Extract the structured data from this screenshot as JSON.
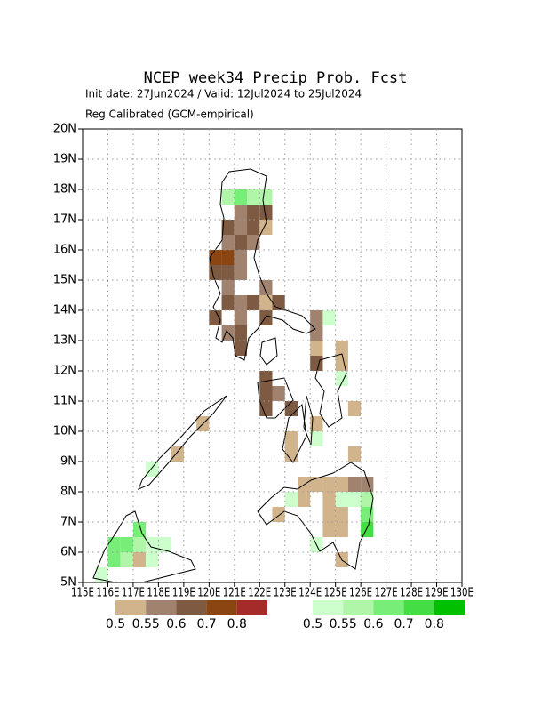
{
  "chart_data": {
    "type": "gridmap",
    "title": "NCEP week34 Precip Prob. Fcst",
    "subtitle": "Init date: 27Jun2024 / Valid: 12Jul2024 to 25Jul2024",
    "note": "Reg Calibrated (GCM-empirical)",
    "xlim": [
      115,
      130
    ],
    "ylim": [
      5,
      20
    ],
    "cell_size": 0.5,
    "grid": true,
    "xticks": [
      {
        "value": 115,
        "label": "115E"
      },
      {
        "value": 116,
        "label": "116E"
      },
      {
        "value": 117,
        "label": "117E"
      },
      {
        "value": 118,
        "label": "118E"
      },
      {
        "value": 119,
        "label": "119E"
      },
      {
        "value": 120,
        "label": "120E"
      },
      {
        "value": 121,
        "label": "121E"
      },
      {
        "value": 122,
        "label": "122E"
      },
      {
        "value": 123,
        "label": "123E"
      },
      {
        "value": 124,
        "label": "124E"
      },
      {
        "value": 125,
        "label": "125E"
      },
      {
        "value": 126,
        "label": "126E"
      },
      {
        "value": 127,
        "label": "127E"
      },
      {
        "value": 128,
        "label": "128E"
      },
      {
        "value": 129,
        "label": "129E"
      },
      {
        "value": 130,
        "label": "130E"
      }
    ],
    "yticks": [
      {
        "value": 5,
        "label": "5N"
      },
      {
        "value": 6,
        "label": "6N"
      },
      {
        "value": 7,
        "label": "7N"
      },
      {
        "value": 8,
        "label": "8N"
      },
      {
        "value": 9,
        "label": "9N"
      },
      {
        "value": 10,
        "label": "10N"
      },
      {
        "value": 11,
        "label": "11N"
      },
      {
        "value": 12,
        "label": "12N"
      },
      {
        "value": 13,
        "label": "13N"
      },
      {
        "value": 14,
        "label": "14N"
      },
      {
        "value": 15,
        "label": "15N"
      },
      {
        "value": 16,
        "label": "16N"
      },
      {
        "value": 17,
        "label": "17N"
      },
      {
        "value": 18,
        "label": "18N"
      },
      {
        "value": 19,
        "label": "19N"
      },
      {
        "value": 20,
        "label": "20N"
      }
    ],
    "below_legend": {
      "levels": [
        0.5,
        0.55,
        0.6,
        0.7,
        0.8
      ],
      "colors": [
        "#d2b48c",
        "#a0826e",
        "#7d5a41",
        "#8b4513",
        "#a52a2a"
      ]
    },
    "above_legend": {
      "levels": [
        0.5,
        0.55,
        0.6,
        0.7,
        0.8
      ],
      "colors": [
        "#ccffcc",
        "#b0f5a8",
        "#77ee77",
        "#44dd44",
        "#00c000"
      ]
    },
    "below_normal": [
      [
        121,
        17,
        0.55
      ],
      [
        121.5,
        17,
        0.6
      ],
      [
        122,
        17,
        0.6
      ],
      [
        120.5,
        16.5,
        0.6
      ],
      [
        121,
        16.5,
        0.55
      ],
      [
        121.5,
        16.5,
        0.6
      ],
      [
        122,
        16.5,
        0.5
      ],
      [
        120.5,
        16,
        0.55
      ],
      [
        121,
        16,
        0.6
      ],
      [
        121.5,
        16,
        0.55
      ],
      [
        120,
        15.5,
        0.7
      ],
      [
        120.5,
        15.5,
        0.7
      ],
      [
        121,
        15.5,
        0.55
      ],
      [
        120,
        15,
        0.6
      ],
      [
        120.5,
        15,
        0.6
      ],
      [
        121,
        15,
        0.55
      ],
      [
        120.5,
        14.5,
        0.55
      ],
      [
        122,
        14.5,
        0.55
      ],
      [
        120.5,
        14,
        0.6
      ],
      [
        121,
        14,
        0.55
      ],
      [
        121.5,
        14,
        0.6
      ],
      [
        122,
        14,
        0.5
      ],
      [
        122.5,
        14,
        0.6
      ],
      [
        120,
        13.5,
        0.6
      ],
      [
        121,
        13.5,
        0.55
      ],
      [
        122,
        13.5,
        0.6
      ],
      [
        124,
        13.5,
        0.55
      ],
      [
        120.5,
        13,
        0.55
      ],
      [
        121,
        13,
        0.6
      ],
      [
        124,
        13,
        0.55
      ],
      [
        121,
        12.5,
        0.6
      ],
      [
        124,
        12.5,
        0.5
      ],
      [
        125,
        12.5,
        0.5
      ],
      [
        124,
        12,
        0.6
      ],
      [
        125,
        12,
        0.5
      ],
      [
        122,
        11.5,
        0.6
      ],
      [
        122,
        11,
        0.6
      ],
      [
        122.5,
        11,
        0.55
      ],
      [
        122,
        10.5,
        0.6
      ],
      [
        123,
        10.5,
        0.6
      ],
      [
        125.5,
        10.5,
        0.5
      ],
      [
        124,
        10,
        0.5
      ],
      [
        119.5,
        10,
        0.5
      ],
      [
        123,
        9.5,
        0.5
      ],
      [
        118.5,
        9,
        0.5
      ],
      [
        123,
        9,
        0.5
      ],
      [
        125.5,
        9,
        0.5
      ],
      [
        123.5,
        8,
        0.5
      ],
      [
        124,
        8,
        0.5
      ],
      [
        124.5,
        8,
        0.5
      ],
      [
        125,
        8,
        0.5
      ],
      [
        125.5,
        8,
        0.55
      ],
      [
        126,
        8,
        0.55
      ],
      [
        123.5,
        7.5,
        0.5
      ],
      [
        124.5,
        7.5,
        0.5
      ],
      [
        122.5,
        7,
        0.5
      ],
      [
        124.5,
        7,
        0.5
      ],
      [
        125,
        7,
        0.5
      ],
      [
        124.5,
        6.5,
        0.5
      ],
      [
        125,
        6.5,
        0.5
      ],
      [
        125,
        5.5,
        0.5
      ],
      [
        117,
        5.5,
        0.5
      ]
    ],
    "above_normal": [
      [
        120.5,
        17.5,
        0.55
      ],
      [
        121,
        17.5,
        0.6
      ],
      [
        121.5,
        17.5,
        0.55
      ],
      [
        122,
        17.5,
        0.55
      ],
      [
        124.5,
        13.5,
        0.5
      ],
      [
        125,
        11.5,
        0.5
      ],
      [
        124,
        9.5,
        0.5
      ],
      [
        117.5,
        8.5,
        0.5
      ],
      [
        123,
        7.5,
        0.5
      ],
      [
        125,
        7.5,
        0.5
      ],
      [
        125.5,
        7.5,
        0.5
      ],
      [
        126,
        7.5,
        0.55
      ],
      [
        126,
        7,
        0.6
      ],
      [
        126,
        6.5,
        0.7
      ],
      [
        124,
        6,
        0.5
      ],
      [
        117,
        6.5,
        0.6
      ],
      [
        116,
        6,
        0.6
      ],
      [
        116.5,
        6,
        0.6
      ],
      [
        117,
        6,
        0.55
      ],
      [
        117.5,
        6,
        0.5
      ],
      [
        118,
        6,
        0.5
      ],
      [
        116,
        5.5,
        0.6
      ],
      [
        116.5,
        5.5,
        0.55
      ],
      [
        117.5,
        5.5,
        0.5
      ],
      [
        115.5,
        5,
        0.5
      ]
    ]
  }
}
